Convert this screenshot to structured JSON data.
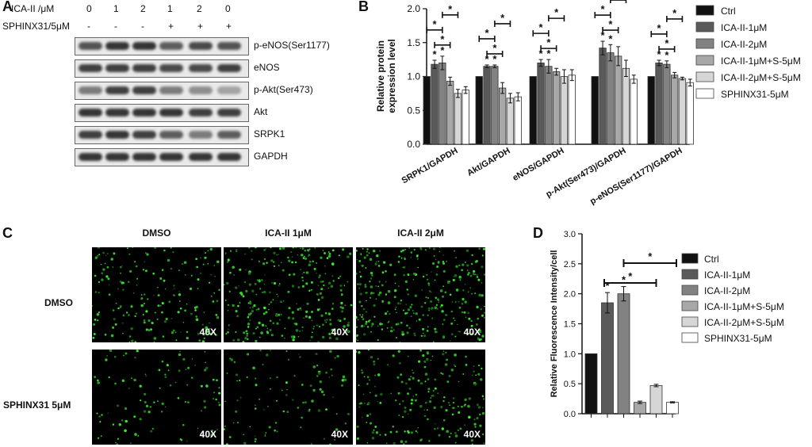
{
  "panelA": {
    "letter": "A",
    "ica_label": "ICA-II /μM",
    "ica_values": [
      "0",
      "1",
      "2",
      "1",
      "2",
      "0"
    ],
    "sphinx_label": "SPHINX31/5μM",
    "sphinx_values": [
      "-",
      "-",
      "-",
      "+",
      "+",
      "+"
    ],
    "blots": [
      {
        "label": "p-eNOS(Ser1177)",
        "intensity": [
          0.75,
          0.9,
          0.9,
          0.7,
          0.8,
          0.75
        ]
      },
      {
        "label": "eNOS",
        "intensity": [
          0.85,
          0.85,
          0.85,
          0.8,
          0.8,
          0.85
        ]
      },
      {
        "label": "p-Akt(Ser473)",
        "intensity": [
          0.55,
          0.85,
          0.85,
          0.55,
          0.45,
          0.35
        ]
      },
      {
        "label": "Akt",
        "intensity": [
          0.9,
          0.9,
          0.9,
          0.9,
          0.85,
          0.85
        ]
      },
      {
        "label": "SRPK1",
        "intensity": [
          0.85,
          0.9,
          0.85,
          0.7,
          0.55,
          0.7
        ]
      },
      {
        "label": "GAPDH",
        "intensity": [
          0.9,
          0.9,
          0.9,
          0.9,
          0.9,
          0.9
        ]
      }
    ]
  },
  "chart_data": [
    {
      "panel": "B",
      "type": "bar",
      "title": "",
      "xlabel": "",
      "ylabel": "Relative protein expression level",
      "ylabel_lines": [
        "Relative protein",
        "expression level"
      ],
      "ylim": [
        0,
        2.0
      ],
      "yticks": [
        "0.0",
        "0.5",
        "1.0",
        "1.5",
        "2.0"
      ],
      "categories": [
        "SRPK1/GAPDH",
        "Akt/GAPDH",
        "eNOS/GAPDH",
        "p-Akt(Ser473)/GAPDH",
        "p-eNOS(Ser1177)/GAPDH"
      ],
      "series": [
        {
          "name": "Ctrl",
          "color": "#111111",
          "values": [
            1.0,
            1.0,
            1.0,
            1.0,
            1.0
          ],
          "errors": [
            0,
            0,
            0,
            0,
            0
          ]
        },
        {
          "name": "ICA-II-1μM",
          "color": "#5a5a5a",
          "values": [
            1.18,
            1.15,
            1.2,
            1.42,
            1.2
          ],
          "errors": [
            0.06,
            0.02,
            0.05,
            0.1,
            0.04
          ]
        },
        {
          "name": "ICA-II-2μM",
          "color": "#828282",
          "values": [
            1.2,
            1.15,
            1.15,
            1.35,
            1.18
          ],
          "errors": [
            0.1,
            0.02,
            0.1,
            0.12,
            0.05
          ]
        },
        {
          "name": "ICA-II-1μM+S-5μM",
          "color": "#a8a8a8",
          "values": [
            0.93,
            0.83,
            1.07,
            1.3,
            1.02
          ],
          "errors": [
            0.06,
            0.08,
            0.05,
            0.14,
            0.04
          ]
        },
        {
          "name": "ICA-II-2μM+S-5μM",
          "color": "#d6d6d6",
          "values": [
            0.75,
            0.68,
            1.0,
            1.12,
            0.97
          ],
          "errors": [
            0.06,
            0.07,
            0.1,
            0.12,
            0.02
          ]
        },
        {
          "name": "SPHINX31-5μM",
          "color": "#ffffff",
          "values": [
            0.8,
            0.7,
            1.02,
            0.96,
            0.91
          ],
          "errors": [
            0.05,
            0.06,
            0.08,
            0.06,
            0.05
          ]
        }
      ],
      "star_label": "*",
      "legend": "right"
    },
    {
      "panel": "D",
      "type": "bar",
      "title": "",
      "xlabel": "",
      "ylabel": "Relative Fluorescence Intensity/cell",
      "ylim": [
        0,
        3.0
      ],
      "yticks": [
        "0.0",
        "0.5",
        "1.0",
        "1.5",
        "2.0",
        "2.5",
        "3.0"
      ],
      "categories": [
        "Ctrl",
        "ICA-II-1μM",
        "ICA-II-2μM",
        "ICA-II-1μM+S-5μM",
        "ICA-II-2μM+S-5μM",
        "SPHINX31-5μM"
      ],
      "colors": [
        "#111111",
        "#5a5a5a",
        "#828282",
        "#a8a8a8",
        "#d6d6d6",
        "#ffffff"
      ],
      "values": [
        1.0,
        1.85,
        2.0,
        0.19,
        0.47,
        0.19
      ],
      "errors": [
        0,
        0.17,
        0.12,
        0.02,
        0.02,
        0.01
      ],
      "star_label": "*",
      "legend": "right"
    }
  ],
  "panelC": {
    "letter": "C",
    "col_headers": [
      "DMSO",
      "ICA-II 1μM",
      "ICA-II 2μM"
    ],
    "row_headers": [
      "DMSO",
      "SPHINX31 5μM"
    ],
    "magnification": "40X",
    "density": [
      [
        0.45,
        0.7,
        0.8
      ],
      [
        0.25,
        0.25,
        0.5
      ]
    ]
  },
  "panelB_letter": "B",
  "panelD_letter": "D"
}
